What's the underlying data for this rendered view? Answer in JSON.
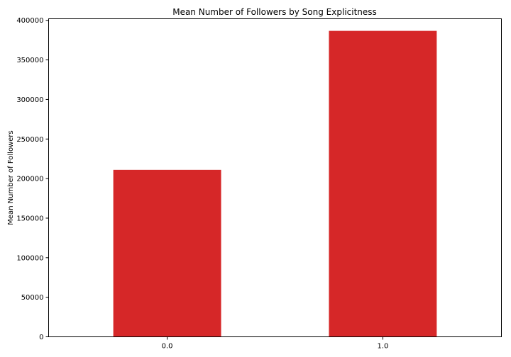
{
  "chart_data": {
    "type": "bar",
    "title": "Mean Number of Followers by Song Explicitness",
    "xlabel": "",
    "ylabel": "Mean Number of Followers",
    "categories": [
      "0.0",
      "1.0"
    ],
    "values": [
      211000,
      386700
    ],
    "ylim": [
      0,
      402000
    ],
    "yticks": [
      0,
      50000,
      100000,
      150000,
      200000,
      250000,
      300000,
      350000,
      400000
    ],
    "bar_color": "#d62728",
    "grid": false,
    "legend": "none"
  }
}
